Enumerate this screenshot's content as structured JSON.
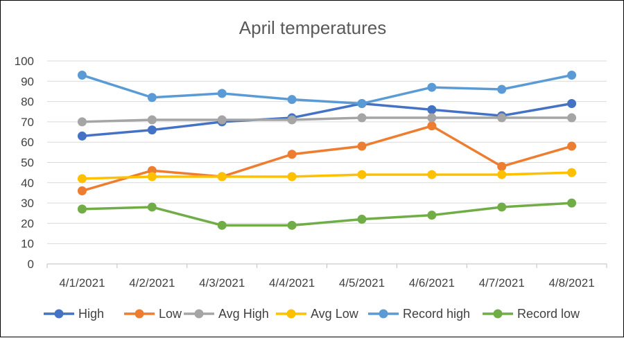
{
  "chart_data": {
    "type": "line",
    "title": "April temperatures",
    "xlabel": "",
    "ylabel": "",
    "categories": [
      "4/1/2021",
      "4/2/2021",
      "4/3/2021",
      "4/4/2021",
      "4/5/2021",
      "4/6/2021",
      "4/7/2021",
      "4/8/2021"
    ],
    "ylim": [
      0,
      100
    ],
    "yticks": [
      0,
      10,
      20,
      30,
      40,
      50,
      60,
      70,
      80,
      90,
      100
    ],
    "grid": true,
    "legend_position": "bottom",
    "series": [
      {
        "name": "High",
        "color": "#4472C4",
        "values": [
          63,
          66,
          70,
          72,
          79,
          76,
          73,
          79
        ]
      },
      {
        "name": "Low",
        "color": "#ED7D31",
        "values": [
          36,
          46,
          43,
          54,
          58,
          68,
          48,
          58
        ]
      },
      {
        "name": "Avg High",
        "color": "#A5A5A5",
        "values": [
          70,
          71,
          71,
          71,
          72,
          72,
          72,
          72
        ]
      },
      {
        "name": "Avg Low",
        "color": "#FFC000",
        "values": [
          42,
          43,
          43,
          43,
          44,
          44,
          44,
          45
        ]
      },
      {
        "name": "Record high",
        "color": "#5B9BD5",
        "values": [
          93,
          82,
          84,
          81,
          79,
          87,
          86,
          93
        ]
      },
      {
        "name": "Record low",
        "color": "#70AD47",
        "values": [
          27,
          28,
          19,
          19,
          22,
          24,
          28,
          30
        ]
      }
    ]
  }
}
